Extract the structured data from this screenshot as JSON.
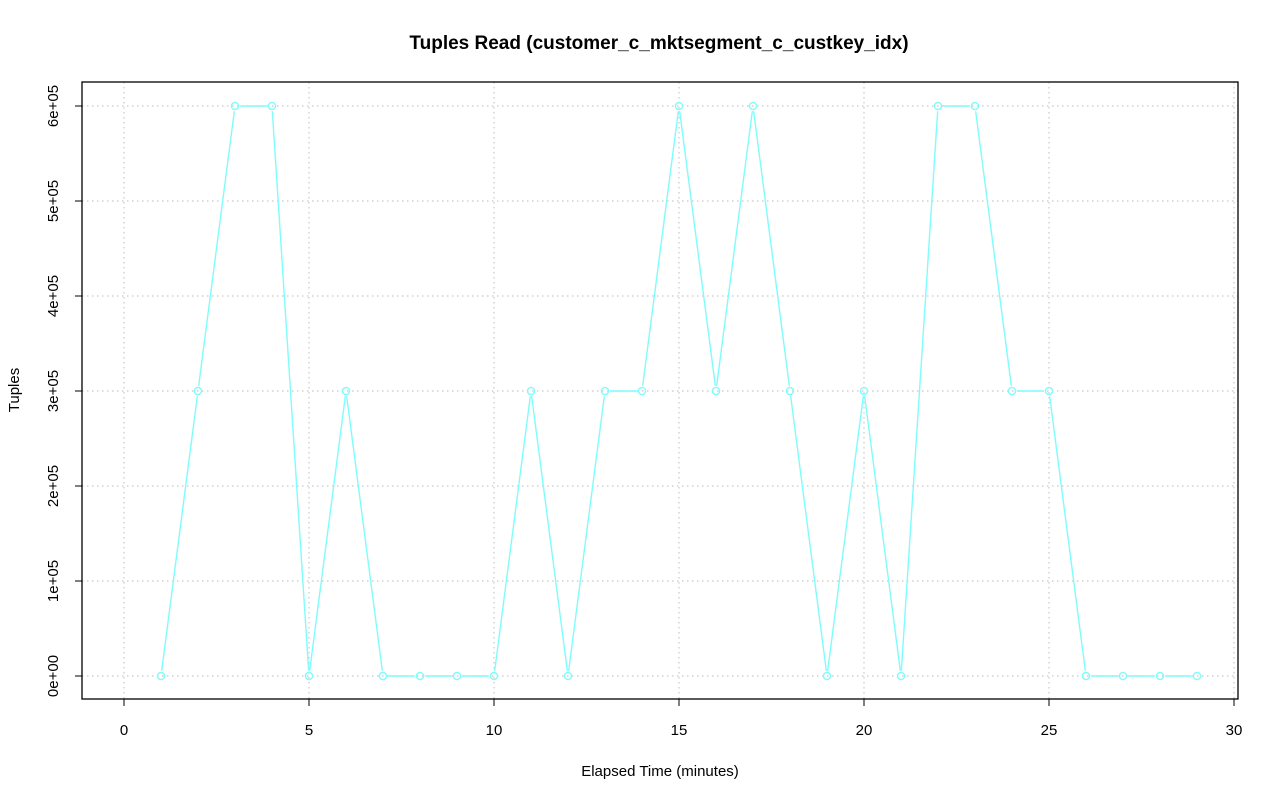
{
  "chart_data": {
    "type": "line",
    "title": "Tuples Read (customer_c_mktsegment_c_custkey_idx)",
    "xlabel": "Elapsed Time (minutes)",
    "ylabel": "Tuples",
    "xlim": [
      0,
      30
    ],
    "ylim": [
      0,
      600000
    ],
    "x_ticks": [
      0,
      5,
      10,
      15,
      20,
      25,
      30
    ],
    "x_tick_labels": [
      "0",
      "5",
      "10",
      "15",
      "20",
      "25",
      "30"
    ],
    "y_ticks": [
      0,
      100000,
      200000,
      300000,
      400000,
      500000,
      600000
    ],
    "y_tick_labels": [
      "0e+00",
      "1e+05",
      "2e+05",
      "3e+05",
      "4e+05",
      "5e+05",
      "6e+05"
    ],
    "grid": true,
    "series": [
      {
        "color": "#7ffcfc",
        "marker": "circle",
        "x": [
          1,
          2,
          3,
          4,
          5,
          6,
          7,
          8,
          9,
          10,
          11,
          12,
          13,
          14,
          15,
          16,
          17,
          18,
          19,
          20,
          21,
          22,
          23,
          24,
          25,
          26,
          27,
          28,
          29
        ],
        "y": [
          0,
          300000,
          600000,
          600000,
          0,
          300000,
          0,
          0,
          0,
          0,
          300000,
          0,
          300000,
          300000,
          600000,
          300000,
          600000,
          300000,
          0,
          300000,
          0,
          600000,
          600000,
          300000,
          300000,
          0,
          0,
          0,
          0
        ]
      }
    ]
  }
}
